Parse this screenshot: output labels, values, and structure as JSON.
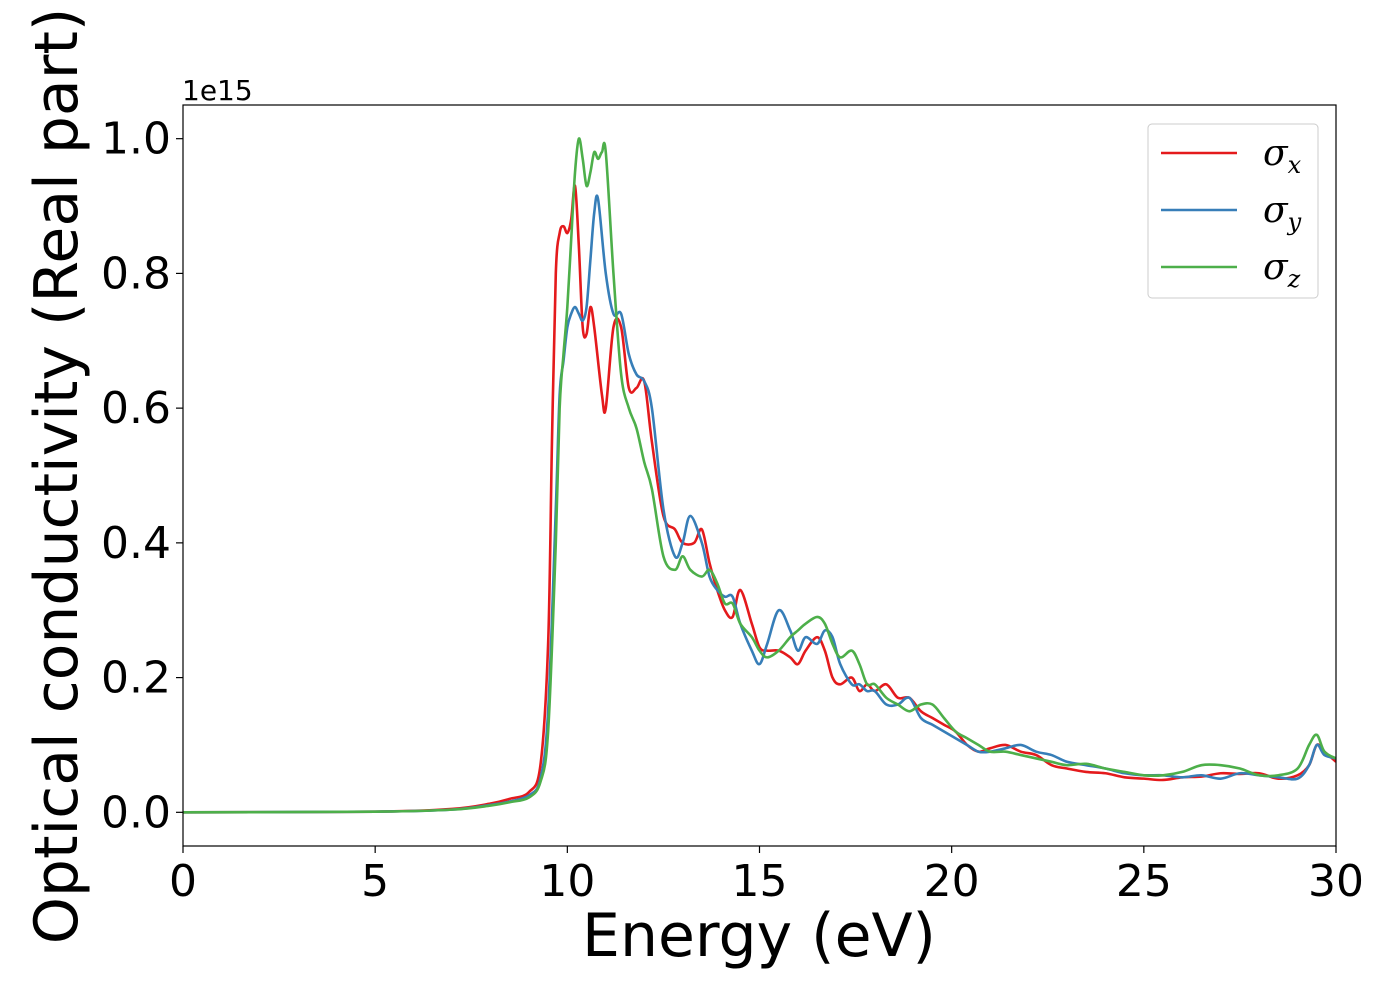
{
  "chart_data": {
    "type": "line",
    "title": "",
    "xlabel": "Energy (eV)",
    "ylabel": "Optical conductivity (Real part)",
    "y_offset_text": "1e15",
    "xlim": [
      0,
      30
    ],
    "ylim": [
      -0.05,
      1.05
    ],
    "xticks": [
      0,
      5,
      10,
      15,
      20,
      25,
      30
    ],
    "xtick_labels": [
      "0",
      "5",
      "10",
      "15",
      "20",
      "25",
      "30"
    ],
    "yticks": [
      0.0,
      0.2,
      0.4,
      0.6,
      0.8,
      1.0
    ],
    "ytick_labels": [
      "0.0",
      "0.2",
      "0.4",
      "0.6",
      "0.8",
      "1.0"
    ],
    "grid": false,
    "legend_position": "top-right",
    "series": [
      {
        "name": "σx",
        "legend_symbol": "σ",
        "legend_subscript": "x",
        "color": "#e41a1c",
        "x": [
          0,
          5,
          7,
          8,
          8.5,
          9,
          9.3,
          9.5,
          9.6,
          9.7,
          9.8,
          9.9,
          10.0,
          10.1,
          10.2,
          10.3,
          10.4,
          10.5,
          10.6,
          10.7,
          10.9,
          11.0,
          11.2,
          11.4,
          11.6,
          11.8,
          12.0,
          12.2,
          12.5,
          12.8,
          13.0,
          13.3,
          13.5,
          13.7,
          13.9,
          14.1,
          14.3,
          14.5,
          14.8,
          15.0,
          15.2,
          15.5,
          15.8,
          16.0,
          16.2,
          16.5,
          16.7,
          16.9,
          17.1,
          17.4,
          17.6,
          17.8,
          18.0,
          18.3,
          18.6,
          18.9,
          19.2,
          19.5,
          19.8,
          20.1,
          20.4,
          20.7,
          21.0,
          21.4,
          21.8,
          22.2,
          22.6,
          23.0,
          23.5,
          24.0,
          24.5,
          25.0,
          25.5,
          26.0,
          26.5,
          27.0,
          27.5,
          28.0,
          28.5,
          29.0,
          29.3,
          29.5,
          29.7,
          30.0
        ],
        "values": [
          0.0,
          0.001,
          0.005,
          0.013,
          0.02,
          0.03,
          0.07,
          0.25,
          0.55,
          0.8,
          0.86,
          0.87,
          0.86,
          0.88,
          0.93,
          0.84,
          0.72,
          0.71,
          0.75,
          0.72,
          0.62,
          0.6,
          0.72,
          0.72,
          0.63,
          0.63,
          0.64,
          0.55,
          0.44,
          0.42,
          0.4,
          0.4,
          0.42,
          0.37,
          0.33,
          0.3,
          0.29,
          0.33,
          0.28,
          0.245,
          0.24,
          0.24,
          0.23,
          0.22,
          0.24,
          0.26,
          0.24,
          0.2,
          0.19,
          0.2,
          0.18,
          0.19,
          0.18,
          0.19,
          0.17,
          0.17,
          0.15,
          0.14,
          0.13,
          0.12,
          0.1,
          0.09,
          0.095,
          0.1,
          0.09,
          0.085,
          0.07,
          0.065,
          0.06,
          0.058,
          0.052,
          0.05,
          0.048,
          0.052,
          0.053,
          0.058,
          0.057,
          0.058,
          0.05,
          0.055,
          0.07,
          0.1,
          0.09,
          0.075
        ]
      },
      {
        "name": "σy",
        "legend_symbol": "σ",
        "legend_subscript": "y",
        "color": "#377eb8",
        "x": [
          0,
          5,
          7,
          8,
          8.5,
          9,
          9.3,
          9.5,
          9.7,
          9.8,
          9.9,
          10.0,
          10.1,
          10.2,
          10.3,
          10.4,
          10.5,
          10.6,
          10.7,
          10.8,
          11.0,
          11.2,
          11.4,
          11.6,
          11.8,
          12.0,
          12.2,
          12.5,
          12.8,
          13.0,
          13.2,
          13.5,
          13.7,
          13.9,
          14.1,
          14.3,
          14.5,
          14.8,
          15.0,
          15.2,
          15.5,
          15.8,
          16.0,
          16.2,
          16.5,
          16.7,
          16.9,
          17.1,
          17.4,
          17.6,
          17.8,
          18.0,
          18.3,
          18.6,
          18.9,
          19.2,
          19.5,
          19.8,
          20.1,
          20.4,
          20.7,
          21.0,
          21.4,
          21.8,
          22.2,
          22.6,
          23.0,
          23.5,
          24.0,
          24.5,
          25.0,
          25.5,
          26.0,
          26.5,
          27.0,
          27.5,
          28.0,
          28.5,
          29.0,
          29.3,
          29.5,
          29.7,
          30.0
        ],
        "values": [
          0.0,
          0.001,
          0.004,
          0.011,
          0.016,
          0.025,
          0.05,
          0.15,
          0.45,
          0.62,
          0.67,
          0.72,
          0.74,
          0.75,
          0.74,
          0.73,
          0.75,
          0.82,
          0.89,
          0.91,
          0.8,
          0.74,
          0.74,
          0.68,
          0.65,
          0.64,
          0.6,
          0.45,
          0.38,
          0.4,
          0.44,
          0.4,
          0.35,
          0.33,
          0.32,
          0.32,
          0.28,
          0.24,
          0.22,
          0.25,
          0.3,
          0.27,
          0.24,
          0.26,
          0.25,
          0.27,
          0.26,
          0.22,
          0.19,
          0.19,
          0.18,
          0.18,
          0.16,
          0.16,
          0.17,
          0.14,
          0.13,
          0.12,
          0.11,
          0.1,
          0.09,
          0.09,
          0.095,
          0.1,
          0.09,
          0.085,
          0.075,
          0.07,
          0.065,
          0.058,
          0.055,
          0.055,
          0.052,
          0.055,
          0.05,
          0.058,
          0.055,
          0.052,
          0.05,
          0.07,
          0.1,
          0.085,
          0.08
        ]
      },
      {
        "name": "σz",
        "legend_symbol": "σ",
        "legend_subscript": "z",
        "color": "#4daf4a",
        "x": [
          0,
          5,
          7,
          8,
          8.5,
          9,
          9.3,
          9.5,
          9.7,
          9.8,
          9.9,
          10.0,
          10.1,
          10.2,
          10.3,
          10.4,
          10.5,
          10.6,
          10.7,
          10.8,
          10.9,
          11.0,
          11.2,
          11.4,
          11.6,
          11.8,
          12.0,
          12.2,
          12.5,
          12.8,
          13.0,
          13.2,
          13.5,
          13.7,
          13.9,
          14.1,
          14.3,
          14.5,
          14.8,
          15.0,
          15.2,
          15.5,
          15.8,
          16.0,
          16.2,
          16.5,
          16.7,
          16.9,
          17.1,
          17.4,
          17.6,
          17.8,
          18.0,
          18.3,
          18.6,
          18.9,
          19.2,
          19.5,
          19.8,
          20.1,
          20.4,
          20.7,
          21.0,
          21.4,
          21.8,
          22.2,
          22.6,
          23.0,
          23.5,
          24.0,
          24.5,
          25.0,
          25.5,
          26.0,
          26.5,
          27.0,
          27.5,
          28.0,
          28.5,
          29.0,
          29.3,
          29.5,
          29.7,
          30.0
        ],
        "values": [
          0.0,
          0.001,
          0.004,
          0.01,
          0.015,
          0.022,
          0.045,
          0.12,
          0.4,
          0.6,
          0.68,
          0.75,
          0.85,
          0.95,
          1.0,
          0.97,
          0.93,
          0.95,
          0.98,
          0.97,
          0.98,
          0.98,
          0.8,
          0.65,
          0.6,
          0.57,
          0.52,
          0.48,
          0.38,
          0.36,
          0.38,
          0.36,
          0.35,
          0.36,
          0.34,
          0.31,
          0.31,
          0.28,
          0.26,
          0.24,
          0.23,
          0.24,
          0.26,
          0.27,
          0.28,
          0.29,
          0.28,
          0.25,
          0.23,
          0.24,
          0.22,
          0.19,
          0.19,
          0.17,
          0.16,
          0.15,
          0.16,
          0.16,
          0.14,
          0.12,
          0.11,
          0.1,
          0.09,
          0.09,
          0.085,
          0.08,
          0.075,
          0.07,
          0.072,
          0.065,
          0.06,
          0.055,
          0.055,
          0.06,
          0.07,
          0.07,
          0.065,
          0.055,
          0.055,
          0.065,
          0.1,
          0.115,
          0.09,
          0.08
        ]
      }
    ]
  }
}
